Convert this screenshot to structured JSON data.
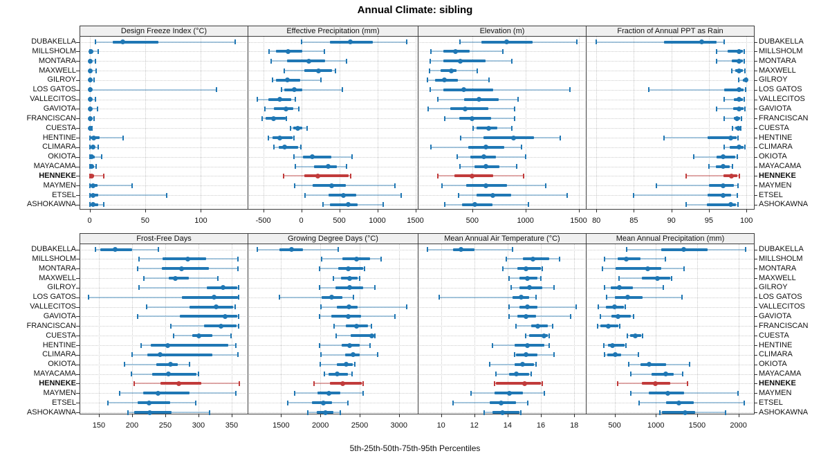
{
  "title": "Annual Climate: sibling",
  "caption": "5th-25th-50th-75th-95th Percentiles",
  "colors": {
    "series": "#1f77b4",
    "series_light": "rgba(31,119,180,0.38)",
    "highlight": "#c13b3b",
    "highlight_light": "rgba(193,59,59,0.42)",
    "strip_bg": "#f0f0f0",
    "panel_border": "#3c3c3c",
    "grid": "#c9c9c9"
  },
  "series_labels": [
    "DUBAKELLA",
    "MILLSHOLM",
    "MONTARA",
    "MAXWELL",
    "GILROY",
    "LOS GATOS",
    "VALLECITOS",
    "GAVIOTA",
    "FRANCISCAN",
    "CUESTA",
    "HENTINE",
    "CLIMARA",
    "OKIOTA",
    "MAYACAMA",
    "HENNEKE",
    "MAYMEN",
    "ETSEL",
    "ASHOKAWNA"
  ],
  "highlight_label": "HENNEKE",
  "chart_data": {
    "type": "table",
    "subtype": "trellis-percentile-dotplot",
    "percentiles": [
      5,
      25,
      50,
      75,
      95
    ],
    "title": "Annual Climate: sibling",
    "xlabel": "5th-25th-50th-75th-95th Percentiles",
    "legend_position": "none",
    "grid": "dotted",
    "panels": [
      {
        "title": "Design Freeze Index (°C)",
        "grid_row": 0,
        "grid_col": 0,
        "xdomain": [
          -9,
          142
        ],
        "xticks": [
          0,
          50,
          100
        ],
        "values": [
          [
            5,
            21,
            30,
            62,
            131
          ],
          [
            0,
            0.5,
            1,
            3,
            8
          ],
          [
            0,
            0,
            0.5,
            1.5,
            5
          ],
          [
            0,
            0,
            0.5,
            2,
            6
          ],
          [
            0,
            0,
            0.5,
            1,
            4
          ],
          [
            0,
            0,
            0.5,
            2,
            114
          ],
          [
            0,
            0,
            0.5,
            1.5,
            5
          ],
          [
            0,
            0,
            0.5,
            2,
            7
          ],
          [
            0,
            0,
            0.5,
            1,
            4
          ],
          [
            0,
            0,
            0.5,
            1,
            2
          ],
          [
            0,
            1,
            4,
            9,
            30
          ],
          [
            0,
            1,
            3,
            5,
            8
          ],
          [
            0,
            1,
            2,
            5,
            11
          ],
          [
            0,
            1,
            2,
            4,
            6
          ],
          [
            0,
            0.5,
            2,
            4,
            13
          ],
          [
            0,
            1,
            3,
            7,
            38
          ],
          [
            0,
            1,
            3,
            8,
            69
          ],
          [
            0,
            1,
            3,
            8,
            13
          ]
        ]
      },
      {
        "title": "Effective Precipitation (mm)",
        "grid_row": 0,
        "grid_col": 1,
        "xdomain": [
          -706,
          1532
        ],
        "xticks": [
          -500,
          0,
          500,
          1000,
          1500
        ],
        "values": [
          [
            0,
            375,
            640,
            940,
            1385
          ],
          [
            -420,
            -330,
            -175,
            10,
            300
          ],
          [
            -400,
            -190,
            100,
            310,
            590
          ],
          [
            -220,
            40,
            230,
            400,
            450
          ],
          [
            -375,
            -330,
            -185,
            -10,
            255
          ],
          [
            -265,
            -220,
            -90,
            10,
            540
          ],
          [
            -580,
            -430,
            -285,
            -130,
            -80
          ],
          [
            -475,
            -360,
            -200,
            -110,
            -30
          ],
          [
            -515,
            -470,
            -365,
            -205,
            -195
          ],
          [
            -145,
            -110,
            -45,
            10,
            75
          ],
          [
            -430,
            -375,
            -285,
            -115,
            -100
          ],
          [
            -365,
            -295,
            -220,
            -40,
            -10
          ],
          [
            -100,
            25,
            140,
            395,
            670
          ],
          [
            -75,
            165,
            350,
            470,
            590
          ],
          [
            -230,
            35,
            220,
            625,
            645
          ],
          [
            -90,
            145,
            395,
            590,
            1230
          ],
          [
            45,
            360,
            550,
            725,
            1310
          ],
          [
            285,
            375,
            615,
            745,
            1080
          ]
        ]
      },
      {
        "title": "Elevation (m)",
        "grid_row": 0,
        "grid_col": 2,
        "xdomain": [
          -13,
          1568
        ],
        "xticks": [
          500,
          1000,
          1500
        ],
        "values": [
          [
            385,
            585,
            820,
            1070,
            1480
          ],
          [
            110,
            225,
            340,
            475,
            785
          ],
          [
            105,
            225,
            390,
            625,
            870
          ],
          [
            95,
            200,
            300,
            355,
            545
          ],
          [
            78,
            150,
            235,
            365,
            655
          ],
          [
            105,
            230,
            420,
            700,
            1415
          ],
          [
            175,
            420,
            565,
            745,
            930
          ],
          [
            85,
            290,
            435,
            650,
            895
          ],
          [
            240,
            375,
            495,
            680,
            895
          ],
          [
            505,
            540,
            655,
            735,
            870
          ],
          [
            390,
            605,
            885,
            1080,
            1330
          ],
          [
            110,
            460,
            630,
            800,
            960
          ],
          [
            355,
            480,
            610,
            725,
            1000
          ],
          [
            385,
            520,
            625,
            755,
            915
          ],
          [
            175,
            330,
            500,
            695,
            980
          ],
          [
            215,
            440,
            630,
            830,
            1190
          ],
          [
            370,
            540,
            695,
            865,
            1395
          ],
          [
            240,
            405,
            525,
            690,
            1030
          ]
        ]
      },
      {
        "title": "Fraction of Annual PPT as Rain",
        "grid_row": 0,
        "grid_col": 3,
        "xdomain": [
          78.6,
          101
        ],
        "xticks": [
          80,
          85,
          90,
          95,
          100
        ],
        "values": [
          [
            80,
            89,
            94,
            96,
            97
          ],
          [
            96,
            97.5,
            99,
            99.5,
            99.7
          ],
          [
            96,
            98,
            99,
            99.5,
            99.7
          ],
          [
            98,
            98.5,
            99,
            99.5,
            99.8
          ],
          [
            99,
            99.5,
            99.9,
            100,
            100
          ],
          [
            87,
            97,
            99,
            99.6,
            99.9
          ],
          [
            97,
            98.3,
            99,
            99.5,
            99.7
          ],
          [
            96,
            98.2,
            99,
            99.6,
            99.8
          ],
          [
            97,
            98.3,
            98.7,
            99.2,
            99.3
          ],
          [
            98.1,
            98.5,
            98.9,
            99.1,
            99.2
          ],
          [
            89,
            94.8,
            97.9,
            98.7,
            98.9
          ],
          [
            97,
            97.8,
            99,
            99.6,
            99.8
          ],
          [
            93,
            96,
            96.9,
            98.5,
            98.8
          ],
          [
            95,
            95.9,
            96.9,
            97.8,
            98.1
          ],
          [
            92,
            96.9,
            98,
            98.8,
            99.1
          ],
          [
            88,
            95,
            96.9,
            98.3,
            98.9
          ],
          [
            85,
            94.8,
            96.9,
            98,
            98.8
          ],
          [
            92,
            94.7,
            97.9,
            98.6,
            98.9
          ]
        ]
      },
      {
        "title": "Frost-Free Days",
        "grid_row": 1,
        "grid_col": 0,
        "xdomain": [
          121,
          374
        ],
        "xticks": [
          150,
          200,
          250,
          300,
          350
        ],
        "values": [
          [
            145,
            152,
            175,
            200,
            240
          ],
          [
            210,
            246,
            284,
            312,
            359
          ],
          [
            208,
            245,
            275,
            316,
            359
          ],
          [
            218,
            255,
            265,
            286,
            329
          ],
          [
            210,
            312,
            337,
            358,
            360
          ],
          [
            134,
            275,
            323,
            359,
            360
          ],
          [
            222,
            287,
            327,
            352,
            355
          ],
          [
            208,
            272,
            340,
            358,
            360
          ],
          [
            258,
            308,
            334,
            357,
            360
          ],
          [
            263,
            291,
            301,
            321,
            349
          ],
          [
            214,
            228,
            254,
            345,
            356
          ],
          [
            200,
            223,
            242,
            321,
            359
          ],
          [
            189,
            236,
            258,
            269,
            286
          ],
          [
            199,
            230,
            255,
            297,
            300
          ],
          [
            203,
            243,
            270,
            304,
            361
          ],
          [
            181,
            217,
            239,
            287,
            356
          ],
          [
            164,
            208,
            226,
            257,
            296
          ],
          [
            194,
            203,
            227,
            260,
            317
          ]
        ]
      },
      {
        "title": "Growing Degree Days (°C)",
        "grid_row": 1,
        "grid_col": 1,
        "xdomain": [
          1074,
          3239
        ],
        "xticks": [
          1500,
          2000,
          2500,
          3000
        ],
        "values": [
          [
            1200,
            1480,
            1630,
            1780,
            2230
          ],
          [
            2015,
            2280,
            2460,
            2635,
            2775
          ],
          [
            1990,
            2225,
            2350,
            2545,
            2565
          ],
          [
            2165,
            2265,
            2370,
            2475,
            2500
          ],
          [
            1990,
            2190,
            2370,
            2540,
            2690
          ],
          [
            1480,
            2015,
            2145,
            2280,
            2420
          ],
          [
            2005,
            2210,
            2360,
            2475,
            3095
          ],
          [
            1990,
            2140,
            2350,
            2520,
            2945
          ],
          [
            2175,
            2325,
            2460,
            2610,
            2650
          ],
          [
            2200,
            2385,
            2655,
            2680,
            2690
          ],
          [
            1990,
            2270,
            2370,
            2500,
            2630
          ],
          [
            2005,
            2315,
            2420,
            2500,
            2730
          ],
          [
            2000,
            2210,
            2325,
            2410,
            2440
          ],
          [
            2050,
            2105,
            2210,
            2355,
            2405
          ],
          [
            1915,
            2120,
            2280,
            2530,
            2545
          ],
          [
            1675,
            1960,
            2105,
            2255,
            2545
          ],
          [
            1580,
            1890,
            2040,
            2145,
            2350
          ],
          [
            1835,
            1950,
            2060,
            2165,
            2255
          ]
        ]
      },
      {
        "title": "Mean Annual Air Temperature (°C)",
        "grid_row": 1,
        "grid_col": 2,
        "xdomain": [
          8.6,
          18.7
        ],
        "xticks": [
          10,
          12,
          14,
          16,
          18
        ],
        "values": [
          [
            9.2,
            10.7,
            11.2,
            12.0,
            14.3
          ],
          [
            13.9,
            14.9,
            15.5,
            16.5,
            17.1
          ],
          [
            13.7,
            14.6,
            15.1,
            16.0,
            16.1
          ],
          [
            14.1,
            14.7,
            15.2,
            15.8,
            16.0
          ],
          [
            14.2,
            14.7,
            15.3,
            16.1,
            16.8
          ],
          [
            9.9,
            14.3,
            14.8,
            15.3,
            15.7
          ],
          [
            14.1,
            14.7,
            15.2,
            15.8,
            18.1
          ],
          [
            14.1,
            14.6,
            15.1,
            15.7,
            17.8
          ],
          [
            14.5,
            15.4,
            15.8,
            16.4,
            16.7
          ],
          [
            15.1,
            15.3,
            16.2,
            16.4,
            16.5
          ],
          [
            13.1,
            14.4,
            15.2,
            16.2,
            16.5
          ],
          [
            14.4,
            14.5,
            15.1,
            15.8,
            16.8
          ],
          [
            12.9,
            14.4,
            14.9,
            15.6,
            15.7
          ],
          [
            13.3,
            14.1,
            14.5,
            15.3,
            15.4
          ],
          [
            13.2,
            13.3,
            15.0,
            16.0,
            16.1
          ],
          [
            11.8,
            13.2,
            14.1,
            14.9,
            16.2
          ],
          [
            10.7,
            12.9,
            13.6,
            14.5,
            15.2
          ],
          [
            12.6,
            13.1,
            13.7,
            14.7,
            14.8
          ]
        ]
      },
      {
        "title": "Mean Annual Precipitation (mm)",
        "grid_row": 1,
        "grid_col": 3,
        "xdomain": [
          151,
          2188
        ],
        "xticks": [
          500,
          1000,
          1500,
          2000
        ],
        "values": [
          [
            645,
            1065,
            1340,
            1625,
            2090
          ],
          [
            375,
            535,
            645,
            810,
            1115
          ],
          [
            355,
            515,
            905,
            1065,
            1340
          ],
          [
            550,
            830,
            1020,
            1175,
            1190
          ],
          [
            380,
            450,
            560,
            725,
            1090
          ],
          [
            400,
            500,
            660,
            835,
            1315
          ],
          [
            300,
            390,
            500,
            615,
            625
          ],
          [
            325,
            460,
            540,
            700,
            730
          ],
          [
            290,
            330,
            425,
            545,
            560
          ],
          [
            650,
            685,
            750,
            825,
            835
          ],
          [
            365,
            415,
            475,
            620,
            635
          ],
          [
            375,
            410,
            510,
            575,
            785
          ],
          [
            670,
            810,
            920,
            1120,
            1405
          ],
          [
            695,
            945,
            1115,
            1215,
            1325
          ],
          [
            535,
            830,
            995,
            1170,
            1380
          ],
          [
            695,
            910,
            1145,
            1340,
            1995
          ],
          [
            795,
            1120,
            1280,
            1455,
            2070
          ],
          [
            1045,
            1075,
            1350,
            1480,
            1845
          ]
        ]
      }
    ]
  }
}
